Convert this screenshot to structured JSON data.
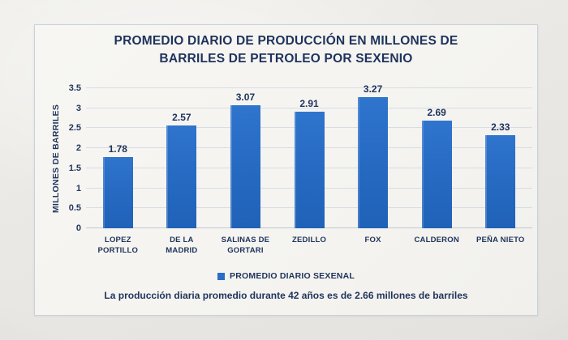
{
  "chart_data": {
    "type": "bar",
    "title": "PROMEDIO DIARIO DE PRODUCCIÓN EN MILLONES DE BARRILES DE PETROLEO POR SEXENIO",
    "title_lines": [
      "PROMEDIO DIARIO DE PRODUCCIÓN EN MILLONES DE",
      "BARRILES DE PETROLEO POR SEXENIO"
    ],
    "categories": [
      "LOPEZ PORTILLO",
      "DE LA MADRID",
      "SALINAS DE GORTARI",
      "ZEDILLO",
      "FOX",
      "CALDERON",
      "PEÑA NIETO"
    ],
    "values": [
      1.78,
      2.57,
      3.07,
      2.91,
      3.27,
      2.69,
      2.33
    ],
    "data_labels": [
      "1.78",
      "2.57",
      "3.07",
      "2.91",
      "3.27",
      "2.69",
      "2.33"
    ],
    "xlabel": "",
    "ylabel": "MILLONES DE BARRILES",
    "yticks": [
      0,
      0.5,
      1,
      1.5,
      2,
      2.5,
      3,
      3.5
    ],
    "ylim": [
      0,
      3.5
    ],
    "grid": true,
    "legend": [
      "PROMEDIO DIARIO SEXENAL"
    ],
    "legend_position": "bottom",
    "bar_color": "#2a6ec8",
    "text_color": "#1e335c"
  },
  "footer_note": "La producción diaria promedio durante 42 años es de 2.66 millones de barriles"
}
